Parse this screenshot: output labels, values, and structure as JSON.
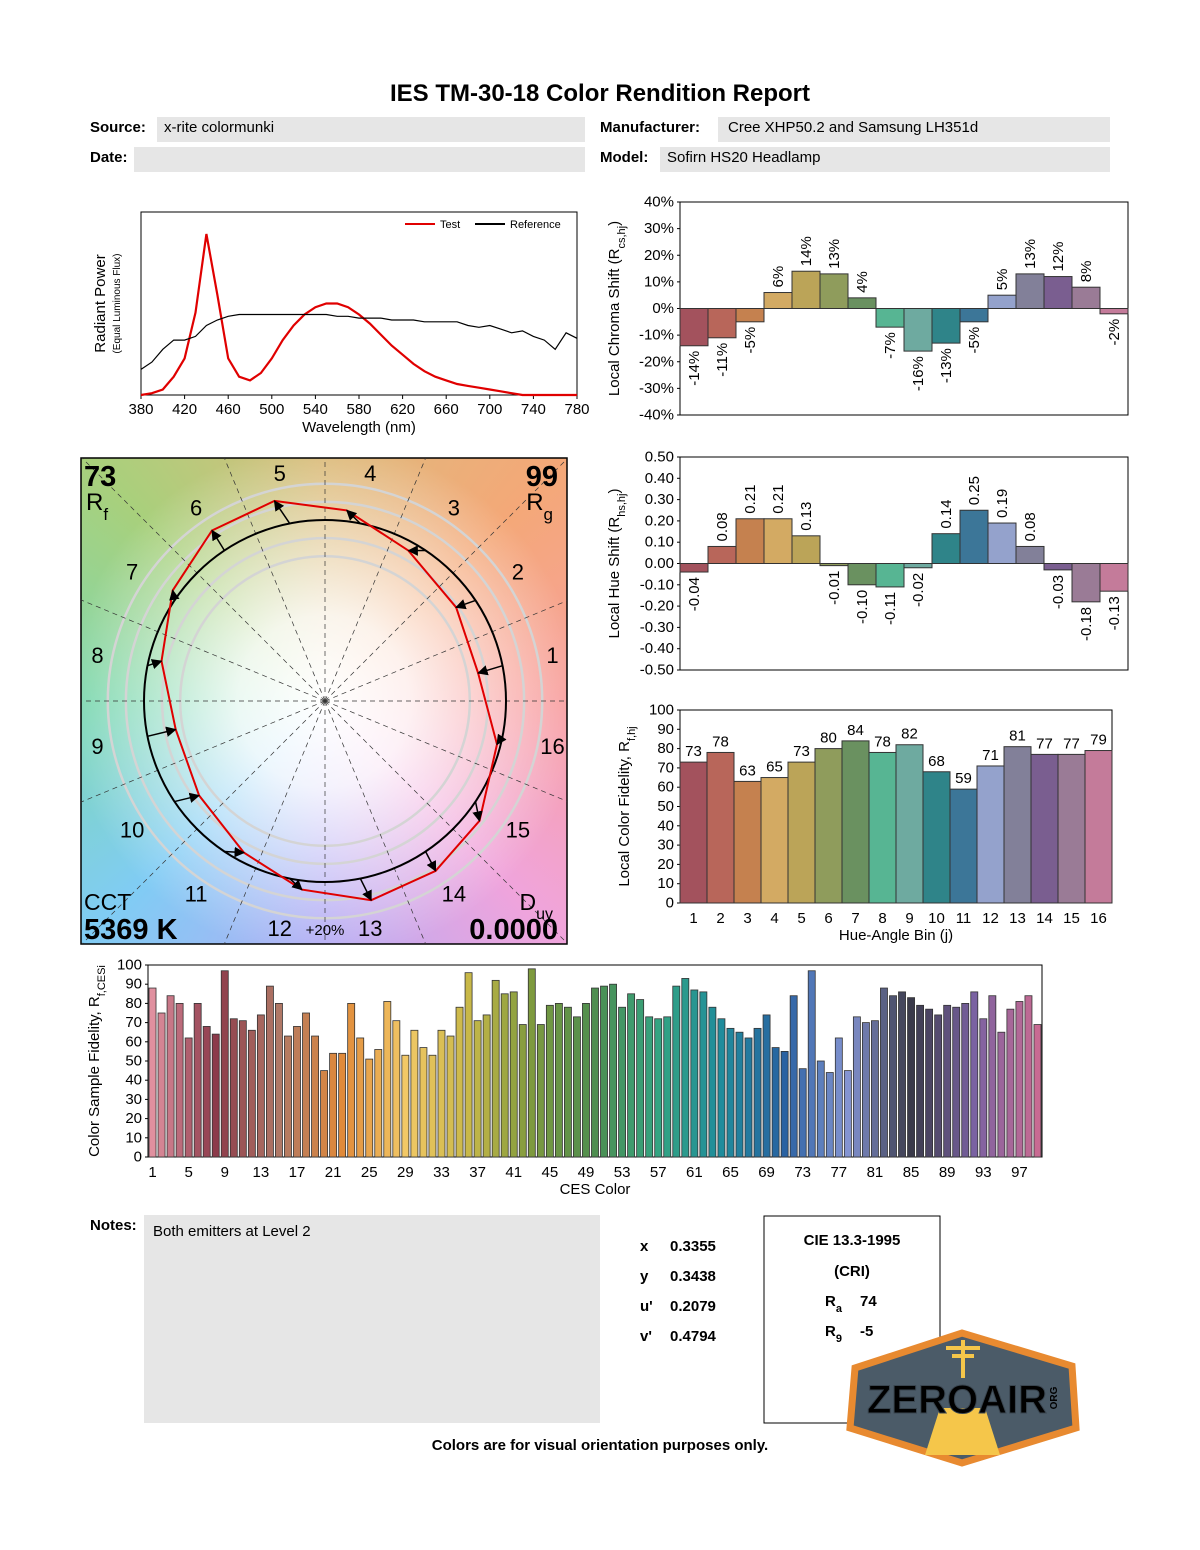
{
  "header": {
    "title": "IES TM-30-18 Color Rendition Report"
  },
  "fields": [
    {
      "label": "Source:",
      "value": "x-rite colormunki"
    },
    {
      "label": "Manufacturer:",
      "value": "Cree XHP50.2 and Samsung LH351d"
    },
    {
      "label": "Date:"
    },
    {
      "label": "Model:",
      "value": "Sofirn HS20 Headlamp"
    }
  ],
  "vector_graphic": {
    "rf": 73,
    "rf_symbol": "R",
    "rf_sub": "f",
    "rg": 99,
    "rg_symbol": "R",
    "rg_sub": "g",
    "cct_label": "CCT",
    "cct": "5369 K",
    "duv_symbol": "D",
    "duv_sub": "uv",
    "duv": "0.0000",
    "bin_labels": [
      1,
      2,
      3,
      4,
      5,
      6,
      7,
      8,
      9,
      10,
      11,
      12,
      13,
      14,
      15,
      16
    ],
    "scale_label": "+20%"
  },
  "chart_data": [
    {
      "type": "line",
      "xlabel": "Wavelength (nm)",
      "ylabel": "Radiant Power",
      "ylabel_sub": "(Equal Luminous Flux)",
      "x": [
        380,
        390,
        400,
        410,
        420,
        430,
        440,
        450,
        460,
        470,
        480,
        490,
        500,
        510,
        520,
        530,
        540,
        550,
        560,
        570,
        580,
        590,
        600,
        610,
        620,
        630,
        640,
        650,
        660,
        670,
        680,
        690,
        700,
        710,
        720,
        730,
        740,
        750,
        760,
        770,
        780
      ],
      "xlim": [
        380,
        780
      ],
      "xticks": [
        380,
        420,
        460,
        500,
        540,
        580,
        620,
        660,
        700,
        740,
        780
      ],
      "ylim": [
        0,
        1
      ],
      "legend": "upper right",
      "series": [
        {
          "name": "Test",
          "color": "#e00000",
          "values": [
            0,
            0.01,
            0.03,
            0.1,
            0.2,
            0.45,
            0.88,
            0.55,
            0.2,
            0.1,
            0.08,
            0.12,
            0.2,
            0.3,
            0.38,
            0.44,
            0.48,
            0.5,
            0.5,
            0.48,
            0.44,
            0.39,
            0.33,
            0.27,
            0.22,
            0.17,
            0.13,
            0.1,
            0.08,
            0.06,
            0.05,
            0.04,
            0.03,
            0.02,
            0.01,
            0,
            0,
            0,
            0,
            0,
            0
          ]
        },
        {
          "name": "Reference",
          "color": "#000000",
          "values": [
            0.14,
            0.18,
            0.25,
            0.3,
            0.3,
            0.32,
            0.38,
            0.41,
            0.43,
            0.44,
            0.44,
            0.44,
            0.44,
            0.44,
            0.44,
            0.44,
            0.44,
            0.44,
            0.43,
            0.43,
            0.42,
            0.42,
            0.42,
            0.41,
            0.41,
            0.41,
            0.4,
            0.4,
            0.4,
            0.4,
            0.38,
            0.37,
            0.38,
            0.36,
            0.34,
            0.35,
            0.32,
            0.3,
            0.25,
            0.34,
            0.31
          ]
        }
      ]
    },
    {
      "type": "bar",
      "ylabel": "Local Chroma Shift (R",
      "ylabel_sub": "cs,hj",
      "ylabel_end": ")",
      "values": [
        -14,
        -11,
        -5,
        6,
        14,
        13,
        4,
        -7,
        -16,
        -13,
        -5,
        5,
        13,
        12,
        8,
        -2
      ],
      "value_labels": [
        "-14%",
        "-11%",
        "-5%",
        "6%",
        "14%",
        "13%",
        "4%",
        "-7%",
        "-16%",
        "-13%",
        "-5%",
        "5%",
        "13%",
        "12%",
        "8%",
        "-2%"
      ],
      "ylim": [
        -40,
        40
      ],
      "yticks": [
        {
          "value": 40,
          "label": "40%"
        },
        {
          "value": 30,
          "label": "30%"
        },
        {
          "value": 20,
          "label": "20%"
        },
        {
          "value": 10,
          "label": "10%"
        },
        {
          "value": 0,
          "label": "0%"
        },
        {
          "value": -10,
          "label": "-10%"
        },
        {
          "value": -20,
          "label": "-20%"
        },
        {
          "value": -30,
          "label": "-30%"
        },
        {
          "value": -40,
          "label": "-40%"
        }
      ],
      "colors": [
        "#a3525d",
        "#b8665a",
        "#c5814f",
        "#d3aa63",
        "#bba458",
        "#8f9c5c",
        "#6a9160",
        "#57b593",
        "#6eaaa0",
        "#2f8489",
        "#3c7698",
        "#94a2cc",
        "#828099",
        "#7a5e90",
        "#9a7b96",
        "#c47b9a"
      ]
    },
    {
      "type": "bar",
      "ylabel": "Local Hue Shift (R",
      "ylabel_sub": "hs,hj",
      "ylabel_end": ")",
      "values": [
        -0.04,
        0.08,
        0.21,
        0.21,
        0.13,
        -0.01,
        -0.1,
        -0.11,
        -0.02,
        0.14,
        0.25,
        0.19,
        0.08,
        -0.03,
        -0.18,
        -0.13
      ],
      "value_labels": [
        "-0.04",
        "0.08",
        "0.21",
        "0.21",
        "0.13",
        "-0.01",
        "-0.10",
        "-0.11",
        "-0.02",
        "0.14",
        "0.25",
        "0.19",
        "0.08",
        "-0.03",
        "-0.18",
        "-0.13"
      ],
      "ylim": [
        -0.5,
        0.5
      ],
      "yticks": [
        {
          "value": 0.5,
          "label": "0.50"
        },
        {
          "value": 0.4,
          "label": "0.40"
        },
        {
          "value": 0.3,
          "label": "0.30"
        },
        {
          "value": 0.2,
          "label": "0.20"
        },
        {
          "value": 0.1,
          "label": "0.10"
        },
        {
          "value": 0,
          "label": "0.00"
        },
        {
          "value": -0.1,
          "label": "-0.10"
        },
        {
          "value": -0.2,
          "label": "-0.20"
        },
        {
          "value": -0.3,
          "label": "-0.30"
        },
        {
          "value": -0.4,
          "label": "-0.40"
        },
        {
          "value": -0.5,
          "label": "-0.50"
        }
      ],
      "colors": [
        "#a3525d",
        "#b8665a",
        "#c5814f",
        "#d3aa63",
        "#bba458",
        "#8f9c5c",
        "#6a9160",
        "#57b593",
        "#6eaaa0",
        "#2f8489",
        "#3c7698",
        "#94a2cc",
        "#828099",
        "#7a5e90",
        "#9a7b96",
        "#c47b9a"
      ]
    },
    {
      "type": "bar",
      "xlabel": "Hue-Angle Bin (j)",
      "ylabel": "Local Color Fidelity, R",
      "ylabel_sub": "f,hj",
      "categories": [
        1,
        2,
        3,
        4,
        5,
        6,
        7,
        8,
        9,
        10,
        11,
        12,
        13,
        14,
        15,
        16
      ],
      "values": [
        73,
        78,
        63,
        65,
        73,
        80,
        84,
        78,
        82,
        68,
        59,
        71,
        81,
        77,
        77,
        79
      ],
      "ylim": [
        0,
        100
      ],
      "yticks": [
        0,
        10,
        20,
        30,
        40,
        50,
        60,
        70,
        80,
        90,
        100
      ],
      "colors": [
        "#a3525d",
        "#b8665a",
        "#c5814f",
        "#d3aa63",
        "#bba458",
        "#8f9c5c",
        "#6a9160",
        "#57b593",
        "#6eaaa0",
        "#2f8489",
        "#3c7698",
        "#94a2cc",
        "#828099",
        "#7a5e90",
        "#9a7b96",
        "#c47b9a"
      ]
    },
    {
      "type": "bar",
      "xlabel": "CES Color",
      "ylabel": "Color Sample Fidelity, R",
      "ylabel_sub": "f,CESi",
      "categories": [
        1,
        null,
        null,
        null,
        5,
        null,
        null,
        null,
        9,
        null,
        null,
        null,
        13,
        null,
        null,
        null,
        17,
        null,
        null,
        null,
        21,
        null,
        null,
        null,
        25,
        null,
        null,
        null,
        29,
        null,
        null,
        null,
        33,
        null,
        null,
        null,
        37,
        null,
        null,
        null,
        41,
        null,
        null,
        null,
        45,
        null,
        null,
        null,
        49,
        null,
        null,
        null,
        53,
        null,
        null,
        null,
        57,
        null,
        null,
        null,
        61,
        null,
        null,
        null,
        65,
        null,
        null,
        null,
        69,
        null,
        null,
        null,
        73,
        null,
        null,
        null,
        77,
        null,
        null,
        null,
        81,
        null,
        null,
        null,
        85,
        null,
        null,
        null,
        89,
        null,
        null,
        null,
        93,
        null,
        null,
        null,
        97,
        null,
        null
      ],
      "values": [
        88,
        75,
        84,
        80,
        62,
        80,
        68,
        64,
        97,
        72,
        71,
        66,
        74,
        89,
        80,
        63,
        68,
        75,
        63,
        45,
        54,
        54,
        80,
        62,
        51,
        56,
        81,
        71,
        53,
        66,
        57,
        53,
        66,
        63,
        78,
        96,
        71,
        74,
        92,
        85,
        86,
        69,
        98,
        69,
        79,
        80,
        78,
        73,
        80,
        88,
        89,
        90,
        78,
        85,
        82,
        73,
        72,
        73,
        89,
        93,
        87,
        86,
        78,
        72,
        67,
        65,
        62,
        67,
        74,
        57,
        55,
        84,
        46,
        97,
        50,
        44,
        62,
        45,
        73,
        70,
        71,
        88,
        84,
        86,
        83,
        79,
        77,
        74,
        79,
        78,
        80,
        86,
        72,
        84,
        65,
        77,
        81,
        84,
        69
      ],
      "ylim": [
        0,
        100
      ],
      "yticks": [
        0,
        10,
        20,
        30,
        40,
        50,
        60,
        70,
        80,
        90,
        100
      ],
      "palette": [
        "#e0909f",
        "#8c3a4a",
        "#b07866",
        "#e08a3a",
        "#f2c866",
        "#c8b848",
        "#7e9a3e",
        "#4e8e50",
        "#34a482",
        "#1f8c9c",
        "#2a62a2",
        "#8494d2",
        "#3a3a4a",
        "#7a62a2",
        "#c86a92"
      ]
    }
  ],
  "notes": {
    "label": "Notes:",
    "text": "Both emitters at Level 2"
  },
  "chromaticity": [
    {
      "label": "x",
      "value": 0.3355
    },
    {
      "label": "y",
      "value": 0.3438
    },
    {
      "label": "u'",
      "value": 0.2079
    },
    {
      "label": "v'",
      "value": 0.4794
    }
  ],
  "cri": {
    "title": "CIE 13.3-1995",
    "subtitle": "(CRI)",
    "entries": [
      {
        "symbol": "R",
        "sub": "a",
        "value": 74
      },
      {
        "symbol": "R",
        "sub": "9",
        "value": -5
      }
    ]
  },
  "footer": "Colors are for visual orientation purposes only.",
  "logo": {
    "text": "ZEROAIR",
    "suffix": "ORG"
  }
}
